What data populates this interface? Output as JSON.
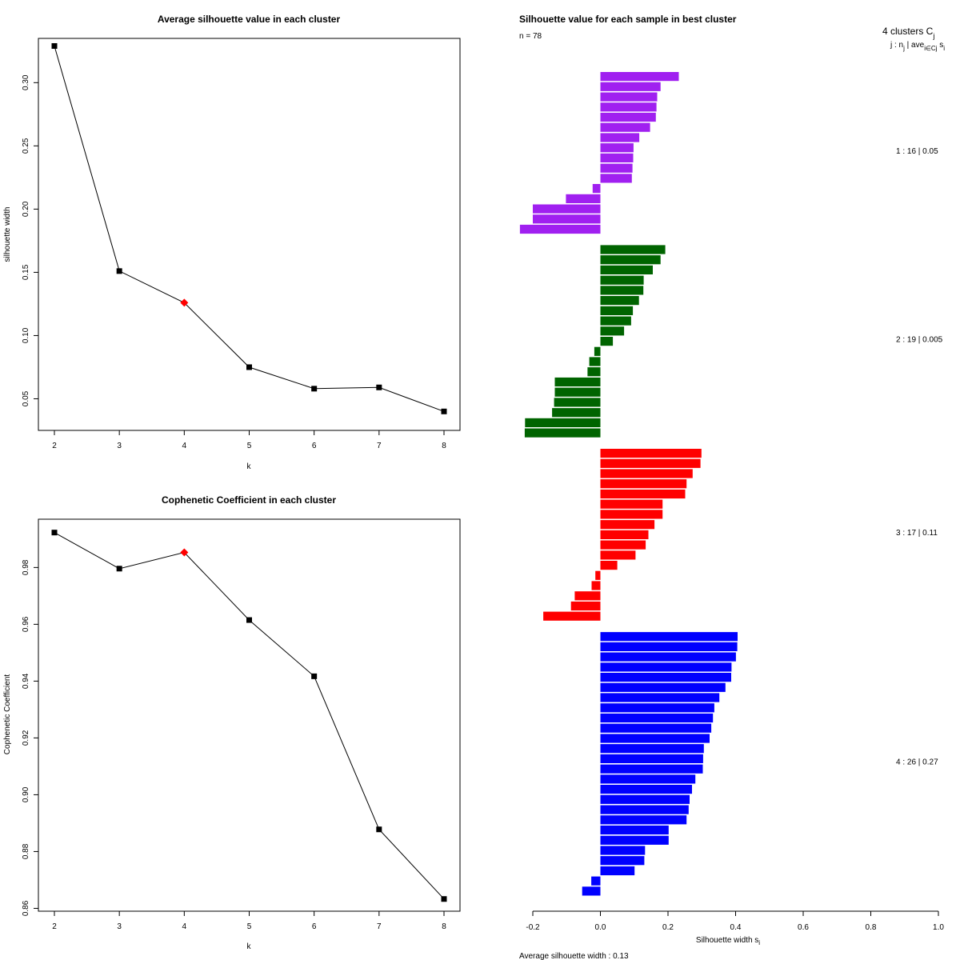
{
  "chart_data": [
    {
      "type": "line",
      "title": "Average silhouette value in each cluster",
      "xlabel": "k",
      "ylabel": "silhouette width",
      "x": [
        2,
        3,
        4,
        5,
        6,
        7,
        8
      ],
      "values": [
        0.329,
        0.151,
        0.126,
        0.075,
        0.058,
        0.059,
        0.04
      ],
      "highlight_k": 4,
      "highlight_color": "#ff0000",
      "xlim": [
        2,
        8
      ],
      "ylim": [
        0.025,
        0.335
      ],
      "yticks": [
        0.05,
        0.1,
        0.15,
        0.2,
        0.25,
        0.3
      ],
      "ytick_labels": [
        "0.05",
        "0.10",
        "0.15",
        "0.20",
        "0.25",
        "0.30"
      ],
      "xtick_labels": [
        "2",
        "3",
        "4",
        "5",
        "6",
        "7",
        "8"
      ]
    },
    {
      "type": "line",
      "title": "Cophenetic Coefficient in each cluster",
      "xlabel": "k",
      "ylabel": "Cophenetic Coefficient",
      "x": [
        2,
        3,
        4,
        5,
        6,
        7,
        8
      ],
      "values": [
        0.9923,
        0.9796,
        0.9853,
        0.9615,
        0.9417,
        0.8878,
        0.8633
      ],
      "highlight_k": 4,
      "highlight_color": "#ff0000",
      "xlim": [
        2,
        8
      ],
      "ylim": [
        0.859,
        0.997
      ],
      "yticks": [
        0.86,
        0.88,
        0.9,
        0.92,
        0.94,
        0.96,
        0.98
      ],
      "ytick_labels": [
        "0.86",
        "0.88",
        "0.90",
        "0.92",
        "0.94",
        "0.96",
        "0.98"
      ],
      "xtick_labels": [
        "2",
        "3",
        "4",
        "5",
        "6",
        "7",
        "8"
      ]
    },
    {
      "type": "bar",
      "orientation": "horizontal",
      "title": "Silhouette value for each sample in best cluster",
      "n_label": "n = 78",
      "xlabel": "Silhouette width s",
      "xlabel_sub": "i",
      "xlim": [
        -0.2,
        1.0
      ],
      "xticks": [
        -0.2,
        0.0,
        0.2,
        0.4,
        0.6,
        0.8,
        1.0
      ],
      "xtick_labels": [
        "-0.2",
        "0.0",
        "0.2",
        "0.4",
        "0.6",
        "0.8",
        "1.0"
      ],
      "legend_title": "4  clusters  C",
      "legend_title_sub": "j",
      "legend_header": "j :  n",
      "legend_header_rest": " | ave",
      "legend_header_sub1": "j",
      "legend_header_sub2": "i∈Cj",
      "legend_header_s": " s",
      "legend_header_sub3": "i",
      "avg_label": "Average silhouette width :  0.13",
      "clusters": [
        {
          "label": "1 :   16  |  0.05",
          "color": "#a020f0",
          "values": [
            0.232,
            0.178,
            0.168,
            0.166,
            0.164,
            0.147,
            0.115,
            0.098,
            0.097,
            0.095,
            0.093,
            -0.023,
            -0.102,
            -0.2,
            -0.2,
            -0.238
          ]
        },
        {
          "label": "2 :   19  |  0.005",
          "color": "#006400",
          "values": [
            0.192,
            0.178,
            0.155,
            0.128,
            0.127,
            0.114,
            0.096,
            0.091,
            0.07,
            0.037,
            -0.018,
            -0.033,
            -0.038,
            -0.135,
            -0.135,
            -0.137,
            -0.143,
            -0.223,
            -0.224
          ]
        },
        {
          "label": "3 :   17  |  0.11",
          "color": "#ff0000",
          "values": [
            0.299,
            0.296,
            0.273,
            0.255,
            0.251,
            0.184,
            0.184,
            0.16,
            0.142,
            0.134,
            0.104,
            0.05,
            -0.015,
            -0.026,
            -0.076,
            -0.087,
            -0.169
          ]
        },
        {
          "label": "4 :   26  |  0.27",
          "color": "#0000ff",
          "values": [
            0.406,
            0.405,
            0.401,
            0.388,
            0.387,
            0.37,
            0.352,
            0.337,
            0.333,
            0.328,
            0.323,
            0.306,
            0.304,
            0.303,
            0.281,
            0.271,
            0.264,
            0.261,
            0.255,
            0.202,
            0.202,
            0.132,
            0.13,
            0.101,
            -0.027,
            -0.054
          ]
        }
      ]
    }
  ]
}
